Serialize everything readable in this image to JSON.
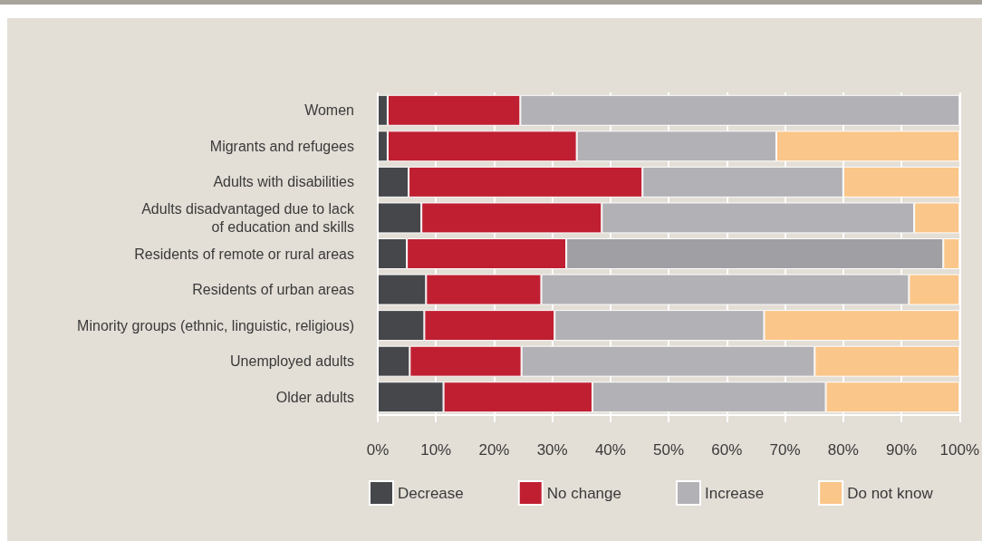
{
  "chart_data": {
    "type": "bar",
    "orientation": "horizontal",
    "stacked": true,
    "categories": [
      "Women",
      "Migrants and refugees",
      "Adults with disabilities",
      "Adults disadvantaged due to lack\nof education and skills",
      "Residents of remote or rural areas",
      "Residents of urban areas",
      "Minority groups (ethnic, linguistic, religious)",
      "Unemployed adults",
      "Older adults"
    ],
    "series": [
      {
        "name": "Decrease",
        "color": "#45474a",
        "values": [
          1.7,
          1.7,
          5.3,
          7.5,
          5.0,
          8.3,
          8.0,
          5.5,
          11.3
        ]
      },
      {
        "name": "No change",
        "color": "#c01f32",
        "values": [
          22.8,
          32.5,
          40.2,
          31.0,
          27.4,
          19.8,
          22.4,
          19.2,
          25.6
        ]
      },
      {
        "name": "Increase",
        "color": "#b2b1b5",
        "colors": [
          "#b2b1b5",
          "#b2b1b5",
          "#b2b1b5",
          "#b2b1b5",
          "#a09fa3",
          "#b2b1b5",
          "#b2b1b5",
          "#b2b1b5",
          "#b2b1b5"
        ],
        "values": [
          75.5,
          34.3,
          34.5,
          53.7,
          64.8,
          63.2,
          36.0,
          50.4,
          40.1
        ]
      },
      {
        "name": "Do not know",
        "color": "#fbc689",
        "values": [
          0,
          31.5,
          20.0,
          7.8,
          2.8,
          8.7,
          33.6,
          24.9,
          23.0
        ]
      }
    ],
    "xlim": [
      0,
      100
    ],
    "xticks": [
      {
        "value": 0,
        "label": "0%"
      },
      {
        "value": 10,
        "label": "10%"
      },
      {
        "value": 20,
        "label": "20%"
      },
      {
        "value": 30,
        "label": "30%"
      },
      {
        "value": 40,
        "label": "40%"
      },
      {
        "value": 50,
        "label": "50%"
      },
      {
        "value": 60,
        "label": "60%"
      },
      {
        "value": 70,
        "label": "70%"
      },
      {
        "value": 80,
        "label": "80%"
      },
      {
        "value": 90,
        "label": "90%"
      },
      {
        "value": 100,
        "label": "100%"
      }
    ],
    "grid": "x",
    "legend": "bottom"
  }
}
